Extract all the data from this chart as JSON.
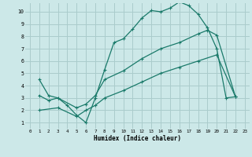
{
  "xlabel": "Humidex (Indice chaleur)",
  "bg_color": "#cce8e8",
  "grid_color": "#aacccc",
  "line_color": "#1a7a6a",
  "xlim": [
    -0.5,
    23.5
  ],
  "ylim": [
    0.5,
    10.7
  ],
  "xticks": [
    0,
    1,
    2,
    3,
    4,
    5,
    6,
    7,
    8,
    9,
    10,
    11,
    12,
    13,
    14,
    15,
    16,
    17,
    18,
    19,
    20,
    21,
    22,
    23
  ],
  "yticks": [
    1,
    2,
    3,
    4,
    5,
    6,
    7,
    8,
    9,
    10
  ],
  "line1_x": [
    1,
    2,
    3,
    4,
    5,
    6,
    7,
    8,
    9,
    10,
    11,
    12,
    13,
    14,
    15,
    16,
    17,
    18,
    19,
    20,
    21,
    22
  ],
  "line1_y": [
    4.5,
    3.2,
    3.0,
    2.4,
    1.6,
    1.0,
    3.0,
    5.3,
    7.5,
    7.8,
    8.6,
    9.5,
    10.1,
    10.0,
    10.3,
    10.8,
    10.5,
    9.8,
    8.7,
    7.0,
    3.0,
    3.1
  ],
  "line2_x": [
    1,
    2,
    3,
    5,
    6,
    7,
    8,
    10,
    12,
    14,
    16,
    18,
    19,
    20,
    22
  ],
  "line2_y": [
    3.2,
    2.8,
    3.0,
    2.2,
    2.5,
    3.2,
    4.5,
    5.2,
    6.2,
    7.0,
    7.5,
    8.2,
    8.5,
    8.1,
    3.1
  ],
  "line3_x": [
    1,
    3,
    5,
    6,
    7,
    8,
    10,
    12,
    14,
    16,
    18,
    20,
    22
  ],
  "line3_y": [
    2.0,
    2.2,
    1.5,
    2.0,
    2.4,
    3.0,
    3.6,
    4.3,
    5.0,
    5.5,
    6.0,
    6.5,
    3.1
  ]
}
